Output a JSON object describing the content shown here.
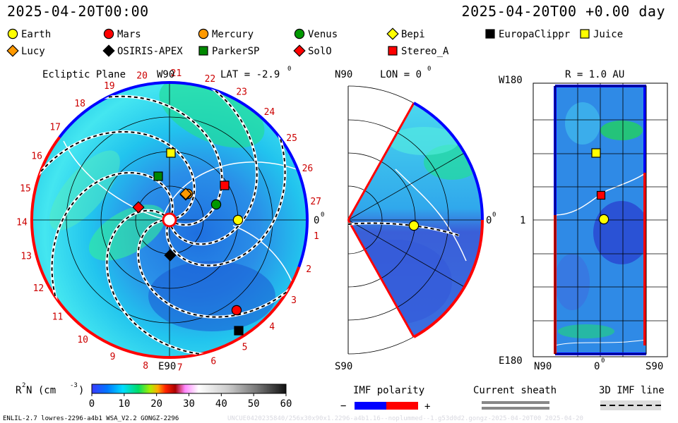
{
  "header": {
    "left_time": "2025-04-20T00:00",
    "right_time": "2025-04-20T00 +0.00 day"
  },
  "legend": [
    {
      "name": "Earth",
      "shape": "circle",
      "color": "#ffff00"
    },
    {
      "name": "Mars",
      "shape": "circle",
      "color": "#ff0000"
    },
    {
      "name": "Mercury",
      "shape": "circle",
      "color": "#ff9900"
    },
    {
      "name": "Venus",
      "shape": "circle",
      "color": "#009900"
    },
    {
      "name": "Bepi",
      "shape": "diamond",
      "color": "#ffff00"
    },
    {
      "name": "EuropaClippr",
      "shape": "square",
      "color": "#000000"
    },
    {
      "name": "Juice",
      "shape": "square",
      "color": "#ffff00"
    },
    {
      "name": "Lucy",
      "shape": "diamond",
      "color": "#ff9900"
    },
    {
      "name": "OSIRIS-APEX",
      "shape": "diamond",
      "color": "#000000"
    },
    {
      "name": "ParkerSP",
      "shape": "square",
      "color": "#008800"
    },
    {
      "name": "SolO",
      "shape": "diamond",
      "color": "#ff0000"
    },
    {
      "name": "Stereo_A",
      "shape": "square",
      "color": "#ff0000"
    }
  ],
  "panels": {
    "ecliptic": {
      "title": "Ecliptic Plane",
      "lat_label": "LAT = -2.9",
      "lat_sup": "0",
      "top_label": "W90",
      "bottom_label": "E90",
      "right_label": "0",
      "right_sup": "0",
      "sector_numbers": [
        "1",
        "2",
        "3",
        "4",
        "5",
        "6",
        "7",
        "8",
        "9",
        "10",
        "11",
        "12",
        "13",
        "14",
        "15",
        "16",
        "17",
        "18",
        "19",
        "20",
        "21",
        "22",
        "23",
        "24",
        "25",
        "26",
        "27"
      ]
    },
    "meridional": {
      "lon_label": "LON = 0",
      "lon_sup": "0",
      "top_label": "N90",
      "bottom_label": "S90",
      "right_label": "0",
      "right_sup": "0"
    },
    "radial": {
      "title": "R = 1.0 AU",
      "top_left_label": "W180",
      "bottom_left_label": "E180",
      "mid_label": "1",
      "x_labels": [
        "N90",
        "0",
        "S90"
      ],
      "x_mid_sup": "0"
    }
  },
  "colorbar": {
    "label": "R",
    "label_sup": "2",
    "label_rest": " N (cm",
    "label_sup2": "-3",
    "label_end": ")",
    "ticks": [
      "0",
      "10",
      "20",
      "30",
      "40",
      "50",
      "60"
    ],
    "range": [
      0,
      60
    ]
  },
  "imf_legend": {
    "title": "IMF polarity",
    "minus": "−",
    "plus": "+",
    "sheath_title": "Current sheath",
    "line_title": "3D IMF line",
    "colors": {
      "negative": "#0000ff",
      "positive": "#ff0000"
    }
  },
  "footer": {
    "left": "ENLIL-2.7 lowres-2296-a4b1 WSA_V2.2 GONGZ-2296",
    "right": "UNCUE0420235840/256x30x90x1.2296-a4b1.16--noplummed--1.g53d0d2.gongz-2025-04-20T00   2025-04-20"
  }
}
